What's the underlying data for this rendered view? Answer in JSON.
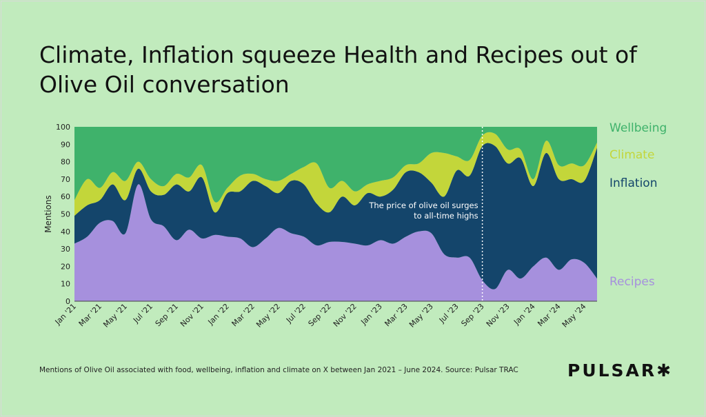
{
  "title": "Climate, Inflation squeeze Health and Recipes out of Olive Oil conversation",
  "caption": "Mentions of Olive Oil associated with food, wellbeing, inflation and climate on X between Jan 2021 – June 2024. Source: Pulsar TRAC",
  "logo": "PULSAR✱",
  "chart_data": {
    "type": "area",
    "stacked": true,
    "title": "Climate, Inflation squeeze Health and Recipes out of Olive Oil conversation",
    "xlabel": "",
    "ylabel": "Mentions",
    "ylim": [
      0,
      100
    ],
    "yticks": [
      0,
      10,
      20,
      30,
      40,
      50,
      60,
      70,
      80,
      90,
      100
    ],
    "grid": false,
    "legend_placement": "right",
    "x": [
      "Jan '21",
      "Feb '21",
      "Mar '21",
      "Apr '21",
      "May '21",
      "Jun '21",
      "Jul '21",
      "Aug '21",
      "Sep '21",
      "Oct '21",
      "Nov '21",
      "Dec '21",
      "Jan '22",
      "Feb '22",
      "Mar '22",
      "Apr '22",
      "May '22",
      "Jun '22",
      "Jul '22",
      "Aug '22",
      "Sep '22",
      "Oct '22",
      "Nov '22",
      "Dec '22",
      "Jan '23",
      "Feb '23",
      "Mar '23",
      "Apr '23",
      "May '23",
      "Jun '23",
      "Jul '23",
      "Aug '23",
      "Sep '23",
      "Oct '23",
      "Nov '23",
      "Dec '23",
      "Jan '24",
      "Feb '24",
      "Mar '24",
      "Apr '24",
      "May '24",
      "Jun '24"
    ],
    "xtick_labels": [
      "Jan '21",
      "Mar '21",
      "May '21",
      "Jul '21",
      "Sep '21",
      "Nov '21",
      "Jan '22",
      "Mar '22",
      "May '22",
      "Jul '22",
      "Sep '22",
      "Nov '22",
      "Jan '23",
      "Mar '23",
      "May '23",
      "Jul '23",
      "Sep '23",
      "Nov '23",
      "Jan '24",
      "Mar '24",
      "May '24"
    ],
    "series": [
      {
        "name": "Recipes",
        "color": "#a690dd",
        "values": [
          33,
          37,
          45,
          46,
          39,
          67,
          47,
          43,
          35,
          41,
          36,
          38,
          37,
          36,
          31,
          36,
          42,
          39,
          37,
          32,
          34,
          34,
          33,
          32,
          35,
          33,
          37,
          40,
          39,
          27,
          25,
          25,
          12,
          7,
          18,
          13,
          20,
          25,
          18,
          24,
          22,
          13
        ]
      },
      {
        "name": "Inflation",
        "color": "#14456b",
        "values": [
          16,
          18,
          13,
          21,
          19,
          9,
          16,
          18,
          32,
          22,
          35,
          13,
          25,
          27,
          38,
          30,
          20,
          30,
          30,
          24,
          17,
          26,
          22,
          30,
          25,
          31,
          37,
          34,
          29,
          33,
          50,
          47,
          77,
          82,
          61,
          69,
          46,
          60,
          52,
          46,
          47,
          75
        ]
      },
      {
        "name": "Climate",
        "color": "#c3d63a",
        "values": [
          9,
          15,
          7,
          7,
          11,
          4,
          7,
          5,
          6,
          8,
          7,
          6,
          3,
          9,
          4,
          4,
          7,
          4,
          10,
          23,
          14,
          9,
          8,
          5,
          9,
          7,
          4,
          5,
          17,
          25,
          8,
          9,
          6,
          7,
          8,
          5,
          4,
          7,
          8,
          9,
          9,
          3
        ]
      },
      {
        "name": "Wellbeing",
        "color": "#3fb26b",
        "values": [
          42,
          30,
          35,
          26,
          31,
          20,
          30,
          34,
          27,
          29,
          22,
          43,
          35,
          28,
          27,
          30,
          31,
          27,
          23,
          21,
          35,
          31,
          37,
          33,
          31,
          29,
          22,
          21,
          15,
          15,
          17,
          19,
          5,
          4,
          13,
          13,
          30,
          8,
          22,
          21,
          22,
          9
        ]
      }
    ],
    "annotation": {
      "x": "Sep '23",
      "text_lines": [
        "The price of olive oil surges",
        "to all-time highs"
      ],
      "line_style": "dotted",
      "color": "#ffffff"
    }
  }
}
